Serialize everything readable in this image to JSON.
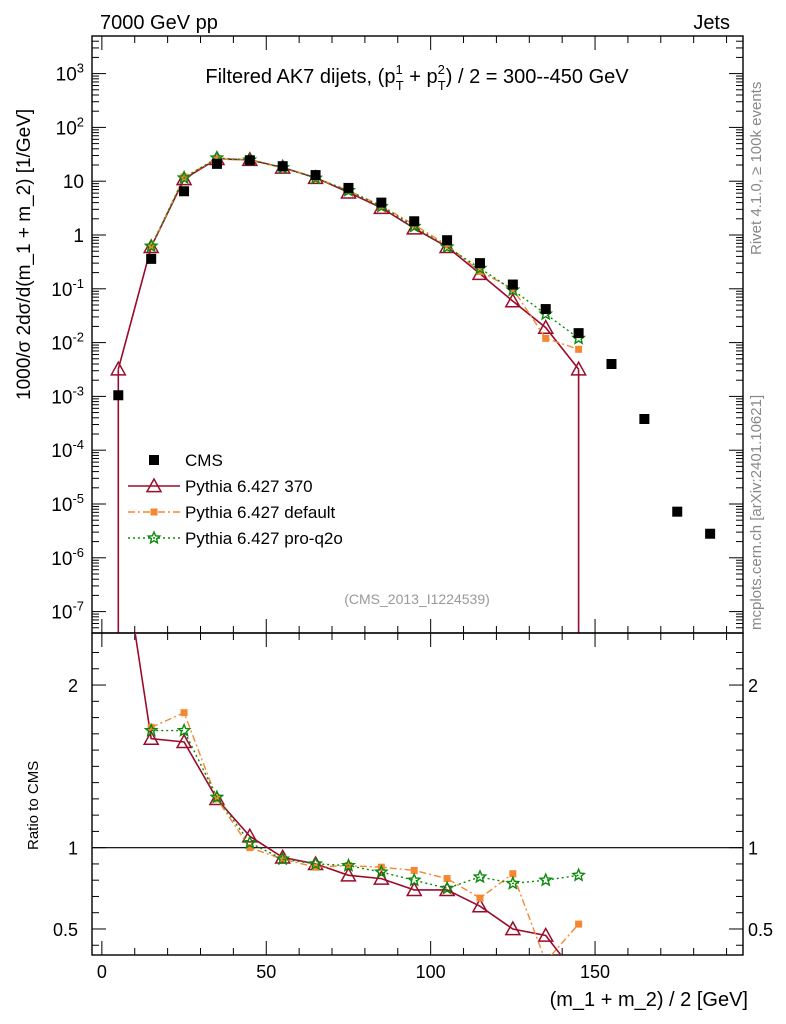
{
  "header": {
    "left": "7000 GeV pp",
    "right": "Jets"
  },
  "side": {
    "rivet": "Rivet 4.1.0, ≥ 100k events",
    "mcplots": "mcplots.cern.ch [arXiv:2401.10621]"
  },
  "chart_data": {
    "type": "scatter",
    "title": "Filtered AK7 dijets, (p_T^1 + p_T^2) / 2 = 300--450 GeV",
    "watermark": "(CMS_2013_I1224539)",
    "xlabel": "(m_1 + m_2) / 2 [GeV]",
    "ylabel": "1000/σ  2dσ/d(m_1 + m_2) [1/GeV]",
    "ratio_ylabel": "Ratio to CMS",
    "xlim": [
      -3,
      195
    ],
    "ylim": [
      4e-08,
      5000
    ],
    "ratio_ylim": [
      0.34,
      2.32
    ],
    "xticks": [
      "0",
      "50",
      "100",
      "150"
    ],
    "yticks": [
      "10^-7",
      "10^-6",
      "10^-5",
      "10^-4",
      "10^-3",
      "10^-2",
      "10^-1",
      "1",
      "10",
      "10^2",
      "10^3"
    ],
    "ratio_yticks": [
      "0.5",
      "1",
      "2"
    ],
    "series": [
      {
        "name": "CMS",
        "color": "#000000",
        "x": [
          5,
          15,
          25,
          35,
          45,
          55,
          65,
          75,
          85,
          95,
          105,
          115,
          125,
          135,
          145,
          155,
          165,
          175,
          185
        ],
        "y": [
          0.00105,
          0.36,
          6.5,
          21,
          24.5,
          19,
          13,
          7.5,
          4,
          1.8,
          0.8,
          0.3,
          0.12,
          0.042,
          0.015,
          0.004,
          0.00038,
          7.2e-06,
          2.8e-06
        ]
      },
      {
        "name": "Pythia 6.427 370",
        "color": "#9b0b2b",
        "x": [
          5,
          15,
          25,
          35,
          45,
          55,
          65,
          75,
          85,
          95,
          105,
          115,
          125,
          135,
          145
        ],
        "y": [
          0.0032,
          0.6,
          11,
          26,
          25,
          18,
          11.6,
          6.2,
          3.2,
          1.33,
          0.6,
          0.19,
          0.059,
          0.019,
          0.0032
        ],
        "ratio": [
          3.0,
          1.67,
          1.65,
          1.3,
          1.07,
          0.94,
          0.9,
          0.83,
          0.81,
          0.74,
          0.74,
          0.64,
          0.5,
          0.46,
          0.2
        ]
      },
      {
        "name": "Pythia 6.427 default",
        "color": "#f58732",
        "x": [
          15,
          25,
          35,
          45,
          55,
          65,
          75,
          85,
          95,
          105,
          115,
          125,
          135,
          145
        ],
        "y": [
          0.6,
          12,
          26,
          24.5,
          17.8,
          11.5,
          6.7,
          3.5,
          1.55,
          0.65,
          0.21,
          0.1,
          0.012,
          0.0075
        ],
        "ratio": [
          1.74,
          1.83,
          1.3,
          1.0,
          0.93,
          0.88,
          0.89,
          0.88,
          0.86,
          0.81,
          0.69,
          0.84,
          0.3,
          0.53
        ]
      },
      {
        "name": "Pythia 6.427 pro-q2o",
        "color": "#0a8a0a",
        "x": [
          15,
          25,
          35,
          45,
          55,
          65,
          75,
          85,
          95,
          105,
          115,
          125,
          135,
          145
        ],
        "y": [
          0.62,
          11.5,
          27,
          24.8,
          17.8,
          11.4,
          6.7,
          3.4,
          1.45,
          0.6,
          0.24,
          0.095,
          0.034,
          0.012
        ],
        "ratio": [
          1.72,
          1.72,
          1.31,
          1.03,
          0.93,
          0.9,
          0.89,
          0.85,
          0.8,
          0.75,
          0.82,
          0.78,
          0.8,
          0.83
        ]
      }
    ]
  }
}
